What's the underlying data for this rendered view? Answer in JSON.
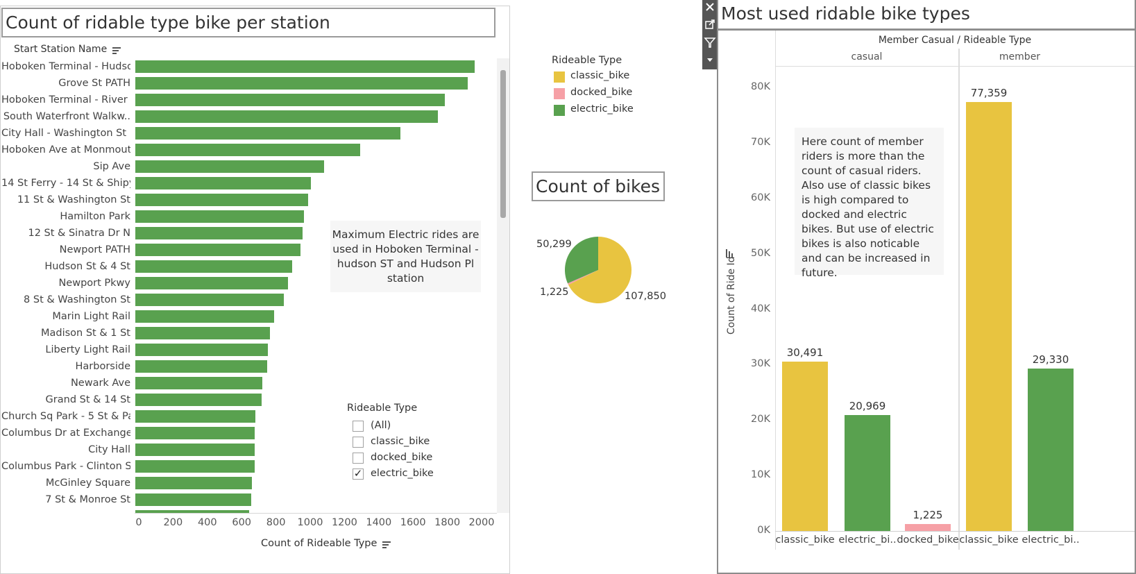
{
  "left_panel": {
    "title": "Count of ridable type bike per station",
    "row_header": "Start Station Name",
    "x_axis_title": "Count of Rideable Type",
    "annotation": "Maximum Electric rides are used in Hoboken Terminal - hudson  ST and Hudson Pl station",
    "filter": {
      "title": "Rideable Type",
      "options": [
        {
          "label": "(All)",
          "checked": false
        },
        {
          "label": "classic_bike",
          "checked": false
        },
        {
          "label": "docked_bike",
          "checked": false
        },
        {
          "label": "electric_bike",
          "checked": true
        }
      ]
    }
  },
  "legend": {
    "title": "Rideable Type",
    "items": [
      {
        "label": "classic_bike",
        "color": "#e8c440"
      },
      {
        "label": "docked_bike",
        "color": "#f6a0a6"
      },
      {
        "label": "electric_bike",
        "color": "#59a14f"
      }
    ]
  },
  "pie_panel": {
    "title": "Count of bikes",
    "labels": [
      "50,299",
      "1,225",
      "107,850"
    ]
  },
  "right_panel": {
    "title": "Most used ridable bike types",
    "header": "Member Casual  /  Rideable Type",
    "groups": [
      "casual",
      "member"
    ],
    "y_axis_title": "Count of Ride Id",
    "annotation": "Here count of member riders is more than the count of casual riders. Also use of classic bikes is high compared to docked and electric bikes. But use of electric bikes is also noticable and can be increased in future.",
    "x_labels": [
      "classic_bike",
      "electric_bi..",
      "docked_bike",
      "classic_bike",
      "electric_bi.."
    ],
    "value_labels": [
      "30,491",
      "20,969",
      "1,225",
      "77,359",
      "29,330"
    ]
  },
  "toolbar": {
    "icons": [
      "close-icon",
      "popout-icon",
      "filter-icon",
      "dropdown-icon"
    ]
  },
  "chart_data": [
    {
      "type": "bar",
      "orientation": "horizontal",
      "title": "Count of ridable type bike per station",
      "xlabel": "Count of Rideable Type",
      "ylabel": "Start Station Name",
      "xlim": [
        0,
        2100
      ],
      "x_ticks": [
        "0",
        "200",
        "400",
        "600",
        "800",
        "1000",
        "1200",
        "1400",
        "1600",
        "1800",
        "2000"
      ],
      "color": "#59a14f",
      "categories": [
        "Hoboken Terminal - Hudso..",
        "Grove St PATH",
        "Hoboken Terminal - River ..",
        "South Waterfront Walkw..",
        "City Hall - Washington St ..",
        "Hoboken Ave at Monmout..",
        "Sip Ave",
        "14 St Ferry - 14 St & Shipy..",
        "11 St & Washington St",
        "Hamilton Park",
        "12 St & Sinatra Dr N",
        "Newport PATH",
        "Hudson St & 4 St",
        "Newport Pkwy",
        "8 St & Washington St",
        "Marin Light Rail",
        "Madison St & 1 St",
        "Liberty Light Rail",
        "Harborside",
        "Newark Ave",
        "Grand St & 14 St",
        "Church Sq Park - 5 St & Par..",
        "Columbus Dr at Exchange ..",
        "City Hall",
        "Columbus Park - Clinton St..",
        "McGinley Square",
        "7 St & Monroe St"
      ],
      "values": [
        1980,
        1940,
        1805,
        1765,
        1545,
        1310,
        1100,
        1025,
        1010,
        985,
        975,
        965,
        915,
        890,
        865,
        810,
        785,
        775,
        770,
        740,
        735,
        700,
        695,
        695,
        695,
        680,
        675
      ]
    },
    {
      "type": "pie",
      "title": "Count of bikes",
      "categories": [
        "classic_bike",
        "docked_bike",
        "electric_bike"
      ],
      "values": [
        107850,
        1225,
        50299
      ],
      "colors": [
        "#e8c440",
        "#f6a0a6",
        "#59a14f"
      ]
    },
    {
      "type": "bar",
      "title": "Most used ridable bike types",
      "ylabel": "Count of Ride Id",
      "ylim": [
        0,
        85000
      ],
      "y_ticks": [
        "0K",
        "10K",
        "20K",
        "30K",
        "40K",
        "50K",
        "60K",
        "70K",
        "80K"
      ],
      "categories": [
        "casual / classic_bike",
        "casual / electric_bike",
        "casual / docked_bike",
        "member / classic_bike",
        "member / electric_bike"
      ],
      "values": [
        30491,
        20969,
        1225,
        77359,
        29330
      ],
      "colors": [
        "#e8c440",
        "#59a14f",
        "#f6a0a6",
        "#e8c440",
        "#59a14f"
      ]
    }
  ]
}
